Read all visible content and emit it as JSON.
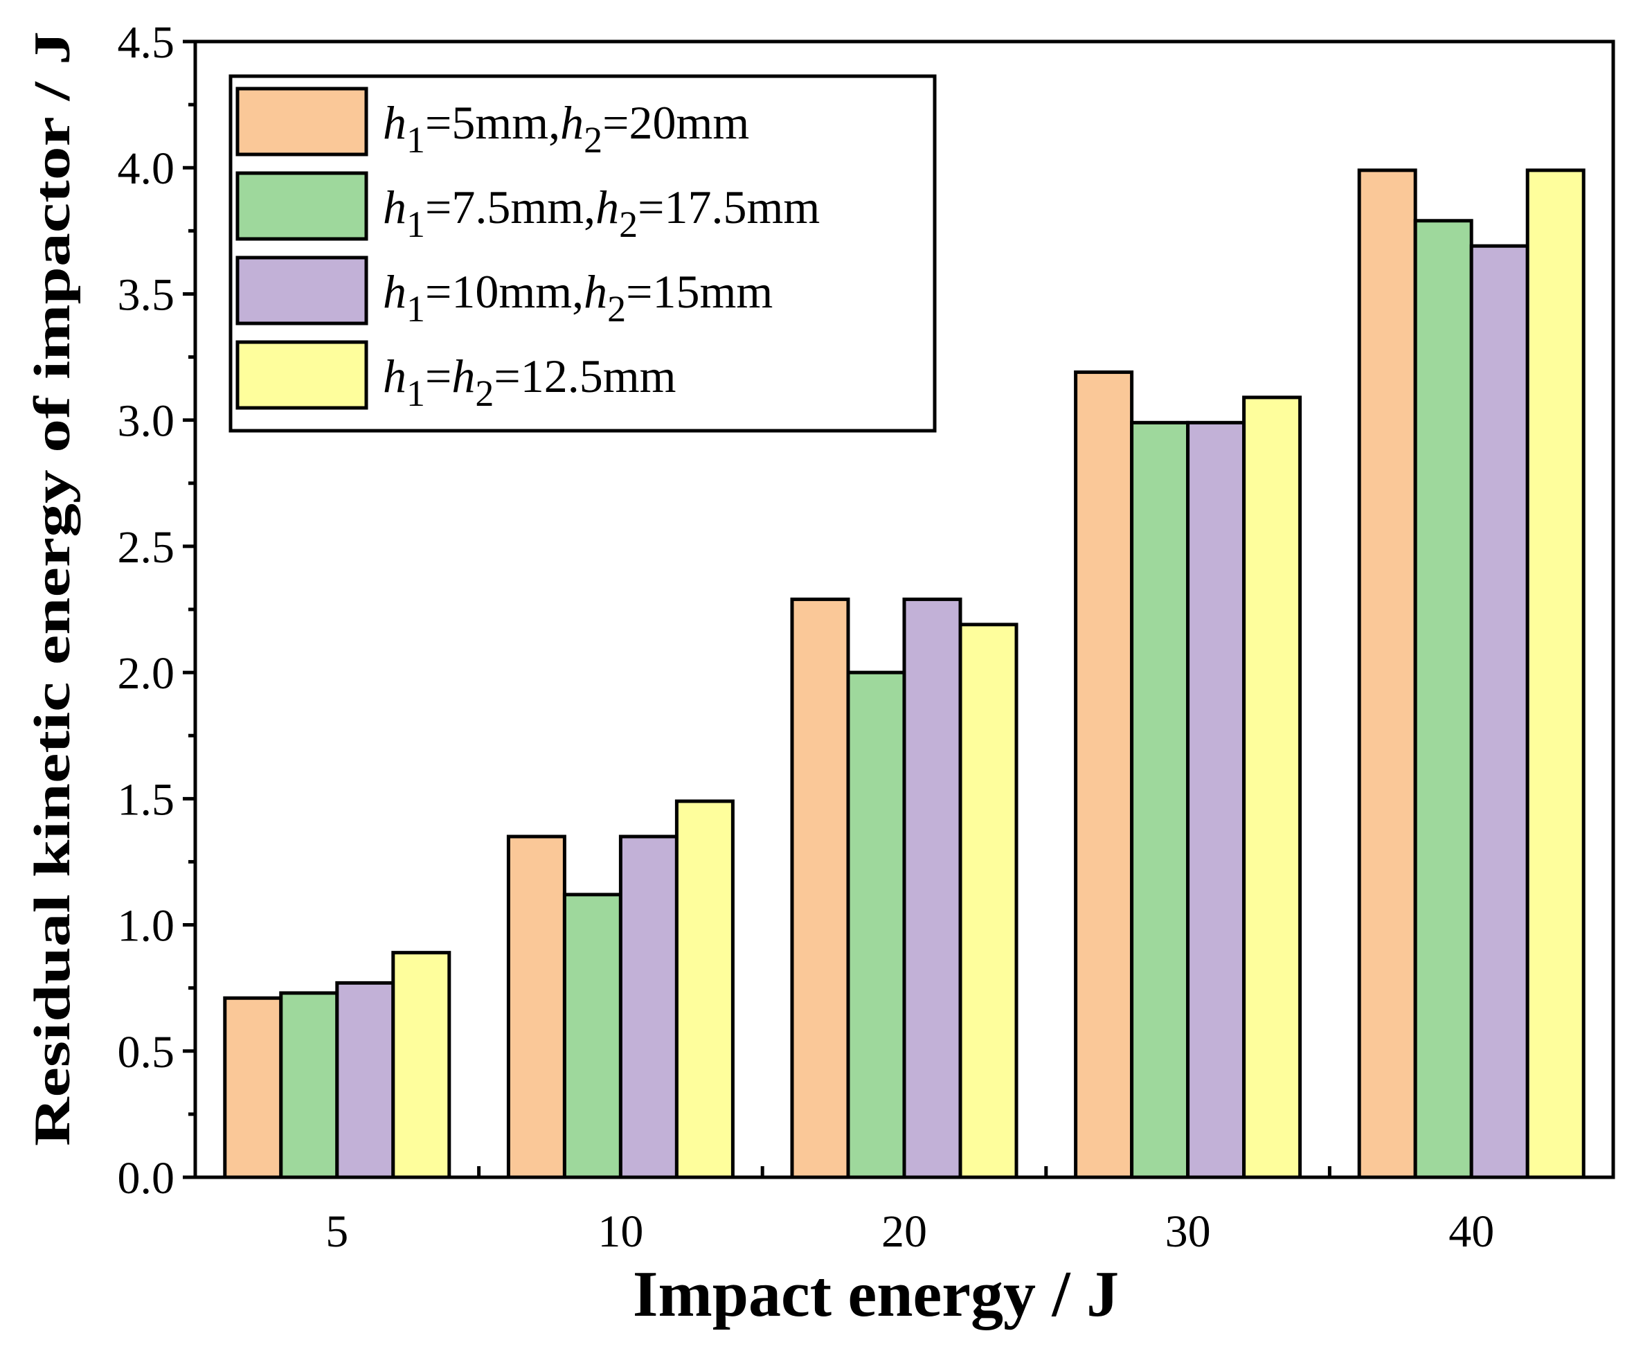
{
  "chart_data": {
    "type": "bar",
    "title": "",
    "xlabel": "Impact energy / J",
    "ylabel": "Residual kinetic energy of impactor / J",
    "categories": [
      "5",
      "10",
      "20",
      "30",
      "40"
    ],
    "ylim": [
      0,
      4.5
    ],
    "yticks": [
      "0.0",
      "0.5",
      "1.0",
      "1.5",
      "2.0",
      "2.5",
      "3.0",
      "3.5",
      "4.0",
      "4.5"
    ],
    "legend_position": "top-left",
    "series": [
      {
        "name": "h1=5mm,h2=20mm",
        "label_parts": [
          {
            "t": "h",
            "i": true
          },
          {
            "t": "1",
            "sub": true
          },
          {
            "t": "=5mm,"
          },
          {
            "t": "h",
            "i": true
          },
          {
            "t": "2",
            "sub": true
          },
          {
            "t": "=20mm"
          }
        ],
        "color": "#fac898",
        "values": [
          0.71,
          1.35,
          2.29,
          3.19,
          3.99
        ]
      },
      {
        "name": "h1=7.5mm,h2=17.5mm",
        "label_parts": [
          {
            "t": "h",
            "i": true
          },
          {
            "t": "1",
            "sub": true
          },
          {
            "t": "=7.5mm,"
          },
          {
            "t": "h",
            "i": true
          },
          {
            "t": "2",
            "sub": true
          },
          {
            "t": "=17.5mm"
          }
        ],
        "color": "#9ed89c",
        "values": [
          0.73,
          1.12,
          2.0,
          2.99,
          3.79
        ]
      },
      {
        "name": "h1=10mm,h2=15mm",
        "label_parts": [
          {
            "t": "h",
            "i": true
          },
          {
            "t": "1",
            "sub": true
          },
          {
            "t": "=10mm,"
          },
          {
            "t": "h",
            "i": true
          },
          {
            "t": "2",
            "sub": true
          },
          {
            "t": "=15mm"
          }
        ],
        "color": "#c2b1d7",
        "values": [
          0.77,
          1.35,
          2.29,
          2.99,
          3.69
        ]
      },
      {
        "name": "h1=h2=12.5mm",
        "label_parts": [
          {
            "t": "h",
            "i": true
          },
          {
            "t": "1",
            "sub": true
          },
          {
            "t": "="
          },
          {
            "t": "h",
            "i": true
          },
          {
            "t": "2",
            "sub": true
          },
          {
            "t": "=12.5mm"
          }
        ],
        "color": "#fefe9c",
        "values": [
          0.89,
          1.49,
          2.19,
          3.09,
          3.99
        ]
      }
    ]
  }
}
